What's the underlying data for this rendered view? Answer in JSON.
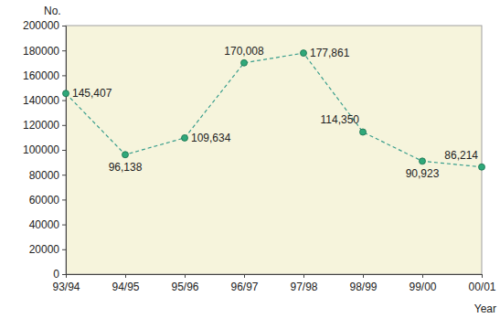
{
  "chart_data": {
    "type": "line",
    "x_label": "Year",
    "y_label": "No.",
    "categories": [
      "93/94",
      "94/95",
      "95/96",
      "96/97",
      "97/98",
      "98/99",
      "99/00",
      "00/01"
    ],
    "values": [
      145407,
      96138,
      109634,
      170008,
      177861,
      114350,
      90923,
      86214
    ],
    "value_labels": [
      "145,407",
      "96,138",
      "109,634",
      "170,008",
      "177,861",
      "114,350",
      "90,923",
      "86,214"
    ],
    "data_labels": true,
    "color": "#2fa87a",
    "line_style": "dashed",
    "marker": "circle",
    "ylim": [
      0,
      200000
    ],
    "yticks": [
      0,
      20000,
      40000,
      60000,
      80000,
      100000,
      120000,
      140000,
      160000,
      180000,
      200000
    ],
    "grid": false
  }
}
